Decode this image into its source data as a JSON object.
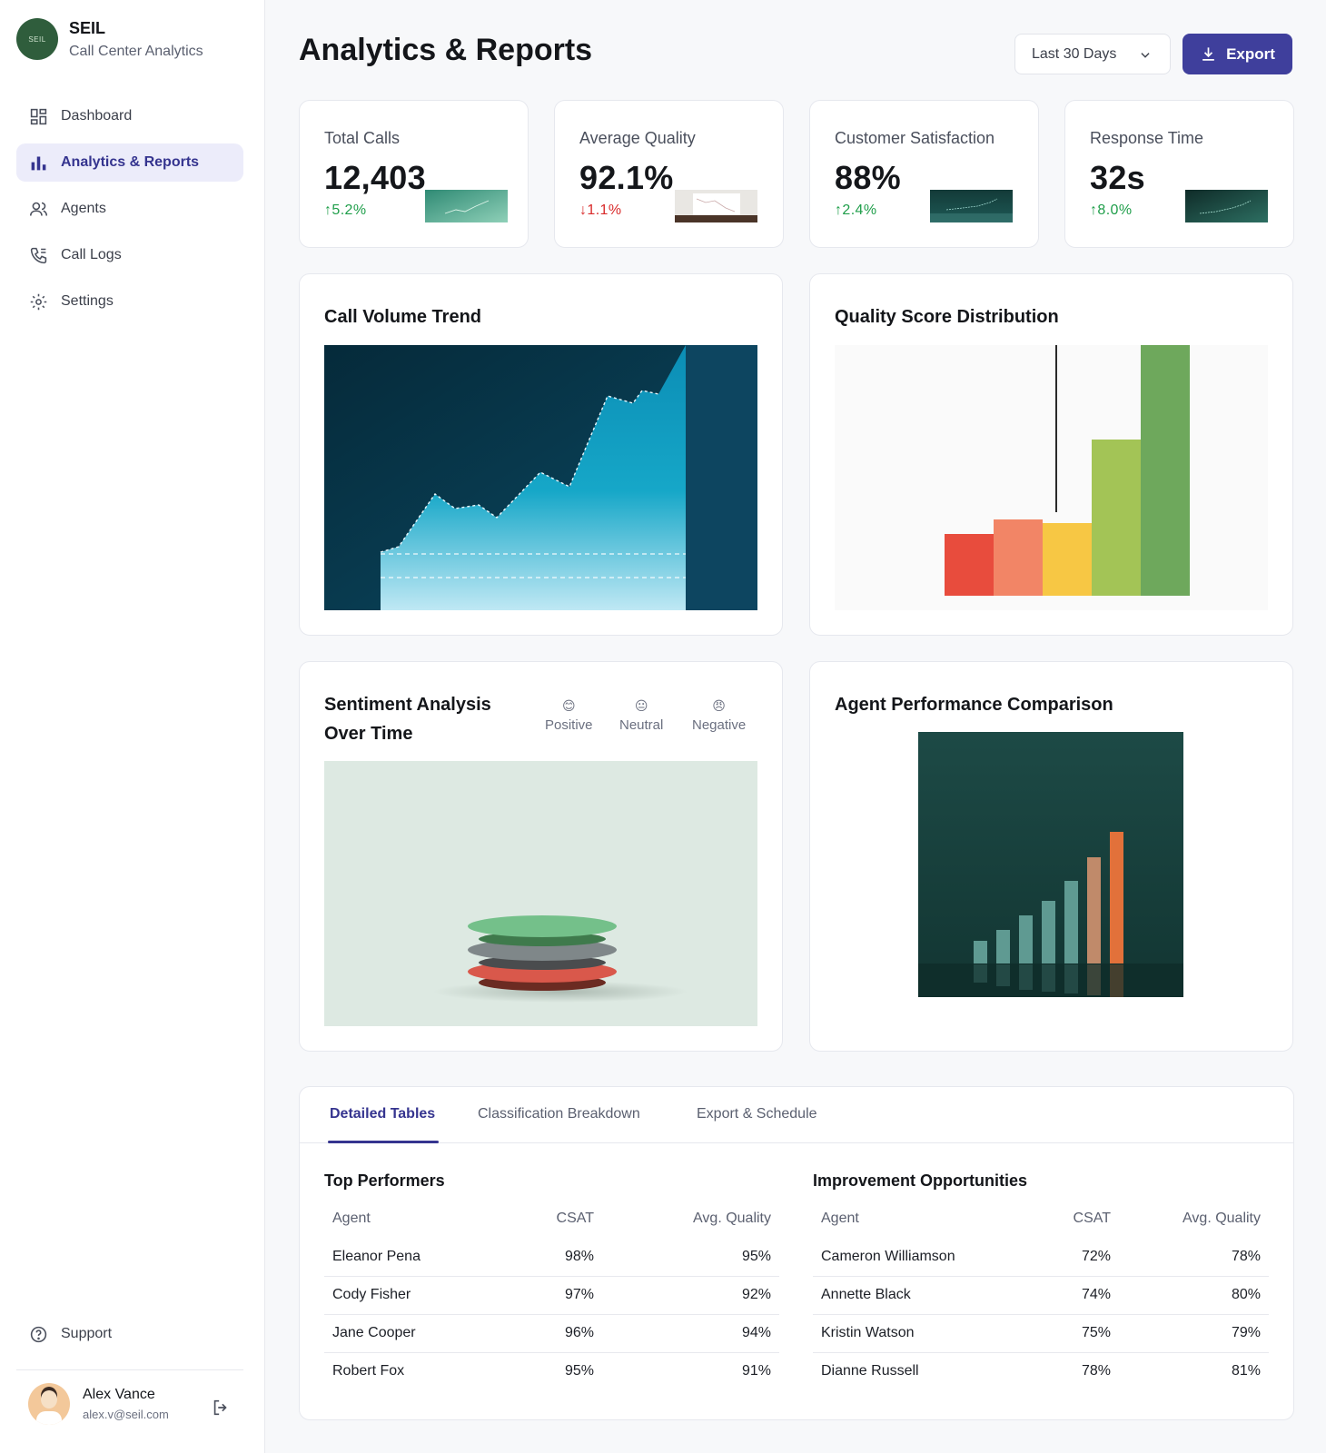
{
  "brand": {
    "logo_text": "SEIL",
    "name": "SEIL",
    "subtitle": "Call Center Analytics"
  },
  "nav": {
    "items": [
      {
        "label": "Dashboard",
        "icon": "dashboard-icon"
      },
      {
        "label": "Analytics & Reports",
        "icon": "bar-chart-icon",
        "active": true
      },
      {
        "label": "Agents",
        "icon": "users-icon"
      },
      {
        "label": "Call Logs",
        "icon": "phone-icon"
      },
      {
        "label": "Settings",
        "icon": "gear-icon"
      }
    ],
    "support_label": "Support"
  },
  "user": {
    "name": "Alex Vance",
    "email": "alex.v@seil.com"
  },
  "header": {
    "title": "Analytics & Reports",
    "range_value": "Last 30 Days",
    "export_label": "Export"
  },
  "kpis": [
    {
      "label": "Total Calls",
      "value": "12,403",
      "change": "5.2%",
      "direction": "up"
    },
    {
      "label": "Average Quality",
      "value": "92.1%",
      "change": "1.1%",
      "direction": "down"
    },
    {
      "label": "Customer Satisfaction",
      "value": "88%",
      "change": "2.4%",
      "direction": "up"
    },
    {
      "label": "Response Time",
      "value": "32s",
      "change": "8.0%",
      "direction": "up"
    }
  ],
  "charts": {
    "call_volume_title": "Call Volume Trend",
    "quality_title": "Quality Score Distribution",
    "sentiment_title_line1": "Sentiment Analysis",
    "sentiment_title_line2": "Over Time",
    "sentiment_legend": [
      {
        "emoji": "😊",
        "label": "Positive"
      },
      {
        "emoji": "😐",
        "label": "Neutral"
      },
      {
        "emoji": "😠",
        "label": "Negative"
      }
    ],
    "agent_title": "Agent Performance Comparison"
  },
  "colors": {
    "accent": "#3f3f9c",
    "up": "#1f9e4a",
    "down": "#d92b2b"
  },
  "tabs": {
    "detailed": "Detailed Tables",
    "classification": "Classification Breakdown",
    "export": "Export & Schedule"
  },
  "top_performers": {
    "title": "Top Performers",
    "headers": {
      "agent": "Agent",
      "csat": "CSAT",
      "quality": "Avg. Quality"
    },
    "rows": [
      {
        "agent": "Eleanor Pena",
        "csat": "98%",
        "quality": "95%"
      },
      {
        "agent": "Cody Fisher",
        "csat": "97%",
        "quality": "92%"
      },
      {
        "agent": "Jane Cooper",
        "csat": "96%",
        "quality": "94%"
      },
      {
        "agent": "Robert Fox",
        "csat": "95%",
        "quality": "91%"
      }
    ]
  },
  "improvement": {
    "title": "Improvement Opportunities",
    "headers": {
      "agent": "Agent",
      "csat": "CSAT",
      "quality": "Avg. Quality"
    },
    "rows": [
      {
        "agent": "Cameron Williamson",
        "csat": "72%",
        "quality": "78%"
      },
      {
        "agent": "Annette Black",
        "csat": "74%",
        "quality": "80%"
      },
      {
        "agent": "Kristin Watson",
        "csat": "75%",
        "quality": "79%"
      },
      {
        "agent": "Dianne Russell",
        "csat": "78%",
        "quality": "81%"
      }
    ]
  }
}
